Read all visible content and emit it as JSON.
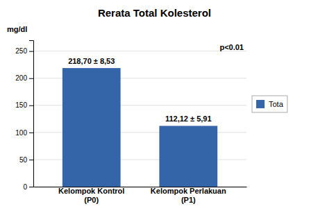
{
  "chart_data": {
    "type": "bar",
    "title": "Rerata Total Kolesterol",
    "y_label": "mg/dl",
    "categories": [
      "Kelompok Kontrol\n(P0)",
      "Kelompok Perlakuan\n(P1)"
    ],
    "series": [
      {
        "name": "Tota",
        "color": "#3465A8",
        "values": [
          218.7,
          112.12
        ],
        "value_labels": [
          "218,70 ± 8,53",
          "112,12 ± 5,91"
        ]
      }
    ],
    "ylim": [
      0,
      270
    ],
    "yticks": [
      0,
      50,
      100,
      150,
      200,
      250
    ],
    "grid": true,
    "legend": "right",
    "data_labels": true,
    "annotations": [
      "p<0.01"
    ]
  }
}
